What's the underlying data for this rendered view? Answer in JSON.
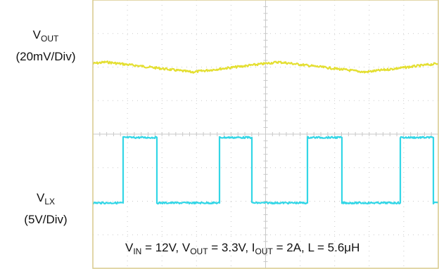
{
  "labels": {
    "vout": {
      "symbol": "V",
      "subscript": "OUT",
      "scale": "(20mV/Div)"
    },
    "vlx": {
      "symbol": "V",
      "subscript": "LX",
      "scale": "(5V/Div)"
    }
  },
  "conditions": {
    "vin_sym": "V",
    "vin_sub": "IN",
    "vin_val": " = 12V, ",
    "vout_sym": "V",
    "vout_sub": "OUT",
    "vout_val": " = 3.3V, ",
    "iout_sym": "I",
    "iout_sub": "OUT",
    "iout_val": " = 2A, L = 5.6μH"
  },
  "colors": {
    "background": "#ffffff",
    "frame": "#d8ca8c",
    "grid": "#c9c9c9",
    "vout_trace": "#e4df32",
    "vlx_trace": "#33d6e6"
  },
  "chart_data": {
    "type": "line",
    "grid": {
      "divisions_x": 10,
      "divisions_y": 8
    },
    "series": [
      {
        "name": "VOUT",
        "description": "output voltage ripple, 20mV/Div, triangular ripple in phase with switching",
        "periods": 2,
        "peak_to_peak_div": 0.3,
        "center_div_from_top": 2.0
      },
      {
        "name": "VLX",
        "description": "switch node voltage, 5V/Div",
        "low_level_div_from_top": 6.05,
        "high_level_div_from_top": 4.1,
        "pulses_start_div": [
          0.87,
          3.65,
          6.2,
          8.9
        ],
        "pulses_end_div": [
          1.85,
          4.6,
          7.2,
          9.85
        ]
      }
    ]
  }
}
